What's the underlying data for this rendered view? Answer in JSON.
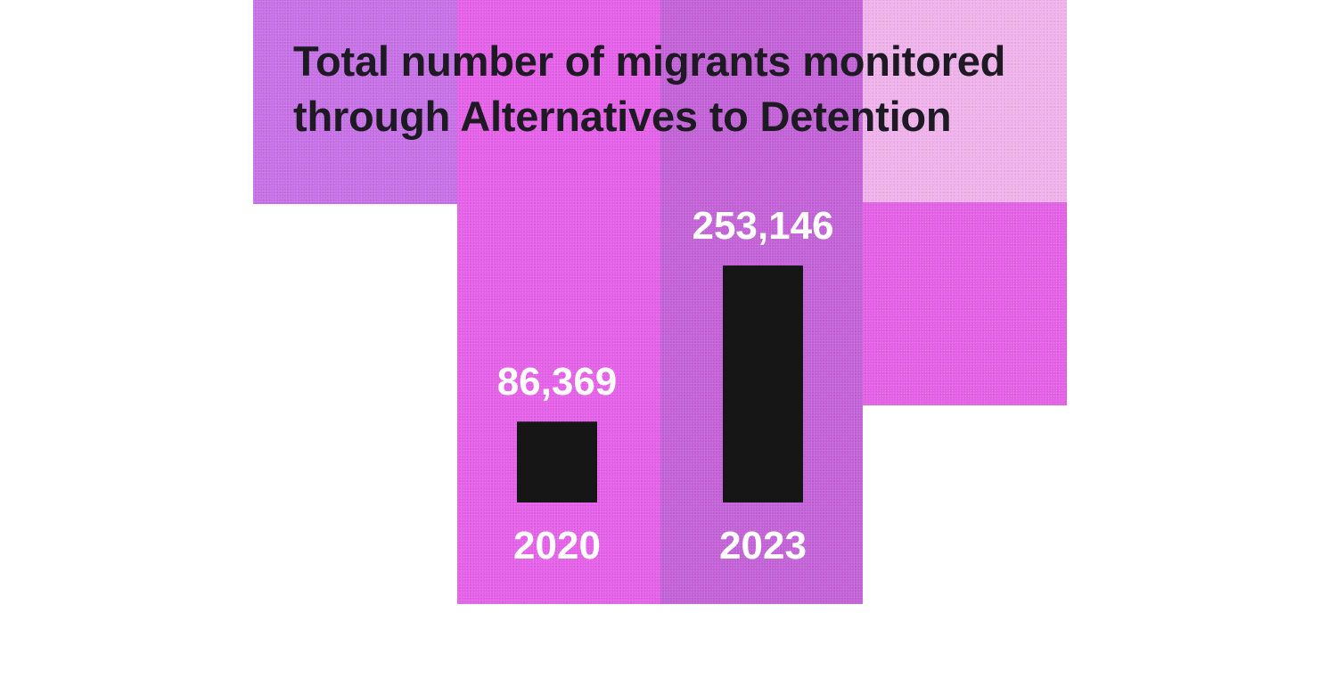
{
  "chart_data": {
    "type": "bar",
    "title": "Total number of migrants monitored through Alternatives to Detention",
    "categories": [
      "2020",
      "2023"
    ],
    "values": [
      86369,
      253146
    ],
    "value_labels": [
      "86,369",
      "253,146"
    ],
    "ylim": [
      0,
      253146
    ],
    "grid": false,
    "legend": "none",
    "colors": {
      "bar": "#161616",
      "label": "#ffffff",
      "title": "#1e1a24",
      "panels": [
        "#c671e6",
        "#e461e8",
        "#c262d6",
        "#efb3ec",
        "#e361e5"
      ]
    }
  }
}
